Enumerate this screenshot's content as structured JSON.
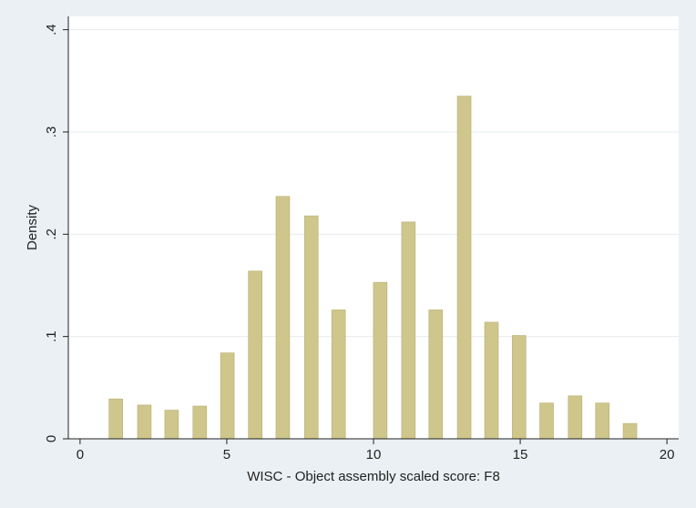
{
  "chart_data": {
    "type": "bar",
    "x_label": "WISC - Object assembly scaled score: F8",
    "y_label": "Density",
    "x": [
      1.22,
      2.19,
      3.12,
      4.08,
      5.02,
      5.97,
      6.91,
      7.88,
      8.81,
      10.23,
      11.19,
      12.12,
      13.09,
      14.02,
      14.96,
      15.9,
      16.87,
      17.8,
      18.74
    ],
    "values": [
      0.039,
      0.033,
      0.028,
      0.032,
      0.084,
      0.164,
      0.237,
      0.218,
      0.126,
      0.153,
      0.212,
      0.126,
      0.335,
      0.114,
      0.101,
      0.035,
      0.042,
      0.035,
      0.015
    ],
    "color": "#cfc68c",
    "xlim": [
      -0.4,
      20.4
    ],
    "xticks": [
      0,
      5,
      10,
      15,
      20
    ],
    "ylim": [
      0,
      0.413
    ],
    "yticks": [
      0,
      {
        "value": 0.1,
        "label": ".1"
      },
      {
        "value": 0.2,
        "label": ".2"
      },
      {
        "value": 0.3,
        "label": ".3"
      },
      {
        "value": 0.4,
        "label": ".4"
      }
    ],
    "grid": true
  }
}
